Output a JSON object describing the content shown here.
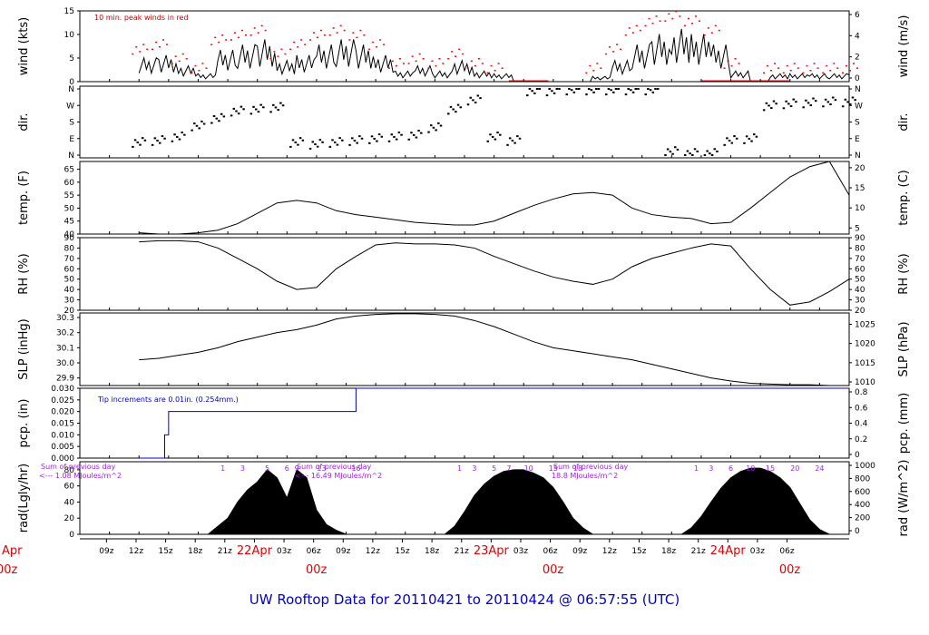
{
  "footer": {
    "title": "UW Rooftop Data for 20110421  to  20110424 @ 06:57:55  (UTC)"
  },
  "x_axis": {
    "hour_ticks": [
      "09z",
      "12z",
      "15z",
      "18z",
      "21z",
      "22Apr",
      "03z",
      "06z",
      "09z",
      "12z",
      "15z",
      "18z",
      "21z",
      "23Apr",
      "03z",
      "06z",
      "09z",
      "12z",
      "15z",
      "18z",
      "21z",
      "24Apr",
      "03z",
      "06z"
    ],
    "day_labels": [
      {
        "day": "21Apr",
        "time": "00z"
      },
      {
        "day": "22Apr",
        "time": "00z"
      },
      {
        "day": "23Apr",
        "time": "00z"
      },
      {
        "day": "24Apr",
        "time": "00z"
      }
    ]
  },
  "chart_data": [
    {
      "type": "line",
      "panel": "wind",
      "ylabel": "wind (kts)",
      "ylabel_right": "wind (m/s)",
      "ylim": [
        0,
        15
      ],
      "yticks": [
        "0",
        "5",
        "10",
        "15"
      ],
      "yticks_right": [
        "0",
        "2",
        "4",
        "6"
      ],
      "annotation": "10 min. peak winds in red",
      "series": [
        {
          "name": "wind",
          "color": "#000000",
          "x": [
            6,
            8,
            10,
            12,
            14,
            16,
            18,
            20,
            22,
            24,
            26,
            28,
            30,
            32,
            34,
            36,
            38,
            40,
            42,
            44,
            46,
            48,
            50,
            52,
            54,
            56,
            58,
            60,
            62,
            64,
            66,
            68,
            70,
            72,
            74,
            76,
            78
          ],
          "values": [
            4.5,
            5,
            3,
            1.5,
            6,
            7,
            8,
            4,
            5,
            7,
            8,
            7,
            5,
            2,
            3,
            2,
            4,
            2,
            1.5,
            0,
            0,
            0,
            0,
            1,
            4,
            7,
            9,
            10,
            9,
            7,
            2,
            0,
            1.5,
            1.5,
            1.5,
            1.5,
            1.5
          ]
        },
        {
          "name": "peak",
          "color": "#ff0000",
          "x": [
            6,
            8,
            10,
            12,
            14,
            16,
            18,
            20,
            22,
            24,
            26,
            28,
            30,
            32,
            34,
            36,
            38,
            40,
            42,
            44,
            46,
            48,
            50,
            52,
            54,
            56,
            58,
            60,
            62,
            64,
            66,
            68,
            70,
            72,
            74,
            76,
            78
          ],
          "values": [
            7,
            8,
            5,
            3,
            9,
            10,
            11,
            6,
            8,
            10,
            11,
            10,
            8,
            4,
            5,
            4,
            6,
            4,
            3,
            0,
            0,
            0,
            0,
            3,
            7,
            11,
            13,
            14,
            13,
            11,
            4,
            0,
            3,
            3,
            3,
            3,
            3
          ]
        }
      ]
    },
    {
      "type": "scatter",
      "panel": "dir",
      "ylabel": "dir.",
      "ylabel_right": "dir.",
      "yticks": [
        "N",
        "E",
        "S",
        "W",
        "N"
      ],
      "series": [
        {
          "name": "direction",
          "color": "#000000",
          "x": [
            6,
            8,
            10,
            12,
            14,
            16,
            18,
            20,
            22,
            24,
            26,
            28,
            30,
            32,
            34,
            36,
            38,
            40,
            42,
            44,
            46,
            48,
            50,
            52,
            54,
            56,
            58,
            60,
            62,
            64,
            66,
            68,
            70,
            72,
            74,
            76,
            78
          ],
          "values": [
            70,
            80,
            100,
            160,
            200,
            240,
            250,
            260,
            70,
            60,
            70,
            80,
            90,
            100,
            110,
            150,
            250,
            300,
            100,
            80,
            350,
            350,
            355,
            355,
            355,
            355,
            355,
            20,
            10,
            10,
            80,
            90,
            270,
            280,
            285,
            290,
            290
          ]
        }
      ]
    },
    {
      "type": "line",
      "panel": "temp",
      "ylabel": "temp. (F)",
      "ylabel_right": "temp. (C)",
      "ylim": [
        40,
        68
      ],
      "yticks": [
        "40",
        "45",
        "50",
        "55",
        "60",
        "65"
      ],
      "yticks_right": [
        "5",
        "10",
        "15",
        "20"
      ],
      "series": [
        {
          "name": "temperature",
          "color": "#000000",
          "x": [
            6,
            8,
            10,
            12,
            14,
            16,
            18,
            20,
            22,
            24,
            26,
            28,
            30,
            32,
            34,
            36,
            38,
            40,
            42,
            44,
            46,
            48,
            50,
            52,
            54,
            56,
            58,
            60,
            62,
            64,
            66,
            68,
            70,
            72,
            74,
            76,
            78
          ],
          "values": [
            40.5,
            40,
            40,
            40.5,
            41.5,
            44,
            48,
            52,
            53,
            52,
            49,
            47.5,
            46.5,
            45.5,
            44.5,
            44,
            43.5,
            43.5,
            45,
            48,
            51,
            53.5,
            55.5,
            56,
            55,
            50,
            47.5,
            46.5,
            46,
            44,
            44.5,
            50,
            56,
            62,
            66,
            68,
            55
          ]
        }
      ]
    },
    {
      "type": "line",
      "panel": "rh",
      "ylabel": "RH (%)",
      "ylabel_right": "RH (%)",
      "ylim": [
        20,
        90
      ],
      "yticks": [
        "20",
        "30",
        "40",
        "50",
        "60",
        "70",
        "80",
        "90"
      ],
      "series": [
        {
          "name": "relative humidity",
          "color": "#000000",
          "x": [
            6,
            8,
            10,
            12,
            14,
            16,
            18,
            20,
            22,
            24,
            26,
            28,
            30,
            32,
            34,
            36,
            38,
            40,
            42,
            44,
            46,
            48,
            50,
            52,
            54,
            56,
            58,
            60,
            62,
            64,
            66,
            68,
            70,
            72,
            74,
            76,
            78
          ],
          "values": [
            86,
            87,
            87,
            86,
            80,
            70,
            60,
            48,
            40,
            42,
            60,
            72,
            83,
            85,
            84,
            84,
            83,
            80,
            72,
            65,
            58,
            52,
            48,
            45,
            50,
            62,
            70,
            75,
            80,
            84,
            82,
            60,
            40,
            25,
            28,
            38,
            50
          ]
        }
      ]
    },
    {
      "type": "line",
      "panel": "slp",
      "ylabel": "SLP (inHg)",
      "ylabel_right": "SLP (hPa)",
      "ylim": [
        29.85,
        30.33
      ],
      "yticks": [
        "29.9",
        "30.0",
        "30.1",
        "30.2",
        "30.3"
      ],
      "yticks_right": [
        "1010",
        "1015",
        "1020",
        "1025"
      ],
      "series": [
        {
          "name": "pressure",
          "color": "#000000",
          "x": [
            6,
            8,
            10,
            12,
            14,
            16,
            18,
            20,
            22,
            24,
            26,
            28,
            30,
            32,
            34,
            36,
            38,
            40,
            42,
            44,
            46,
            48,
            50,
            52,
            54,
            56,
            58,
            60,
            62,
            64,
            66,
            68,
            70,
            72,
            74,
            76,
            78
          ],
          "values": [
            30.02,
            30.03,
            30.05,
            30.07,
            30.1,
            30.14,
            30.17,
            30.2,
            30.22,
            30.25,
            30.29,
            30.31,
            30.32,
            30.325,
            30.325,
            30.32,
            30.31,
            30.28,
            30.24,
            30.19,
            30.14,
            30.1,
            30.08,
            30.06,
            30.04,
            30.02,
            29.99,
            29.96,
            29.93,
            29.9,
            29.88,
            29.865,
            29.86,
            29.855,
            29.855,
            29.85,
            29.85
          ]
        }
      ]
    },
    {
      "type": "line",
      "panel": "pcp",
      "ylabel": "pcp. (in)",
      "ylabel_right": "pcp. (mm)",
      "ylim": [
        0,
        0.03
      ],
      "yticks": [
        "0.000",
        "0.005",
        "0.010",
        "0.015",
        "0.020",
        "0.025",
        "0.030"
      ],
      "yticks_right": [
        "0",
        "0.2",
        "0.4",
        "0.6",
        "0.8"
      ],
      "annotation": "Tip increments are 0.01in. (0.254mm.)",
      "series": [
        {
          "name": "precipitation",
          "color": "#0000cc",
          "x": [
            6,
            8.6,
            8.6,
            9,
            9,
            28,
            28,
            78
          ],
          "values": [
            0,
            0,
            0.01,
            0.01,
            0.02,
            0.02,
            0.03,
            0.03
          ]
        }
      ]
    },
    {
      "type": "area",
      "panel": "rad",
      "ylabel": "rad(Lgly/hr)",
      "ylabel_right": "rad (W/m^2)",
      "ylim": [
        0,
        90
      ],
      "yticks": [
        "0",
        "20",
        "40",
        "60",
        "80"
      ],
      "yticks_right": [
        "0",
        "200",
        "400",
        "600",
        "800",
        "1000"
      ],
      "annotations": [
        {
          "line1": "Sum of previous day",
          "line2": "<--- 1.08 MJoules/m^2"
        },
        {
          "line1": "Sum of previous day",
          "line2": "<--- 16.49 MJoules/m^2"
        },
        {
          "line1": "Sum of previous day",
          "line2": "18.8 MJoules/m^2"
        }
      ],
      "hour_labels": [
        {
          "labels": [
            "1",
            "3",
            "5",
            "6",
            "9",
            "13",
            "16"
          ],
          "x": [
            14.5,
            16.5,
            19,
            21,
            22,
            24.5,
            28
          ]
        },
        {
          "labels": [
            "1",
            "3",
            "5",
            "7",
            "10",
            "15",
            "18"
          ],
          "x": [
            38.5,
            40,
            42,
            43.5,
            45.5,
            48,
            50.5
          ]
        },
        {
          "labels": [
            "1",
            "3",
            "6",
            "10",
            "15",
            "20",
            "24"
          ],
          "x": [
            62.5,
            64,
            66,
            68,
            70,
            72.5,
            75
          ]
        }
      ],
      "series": [
        {
          "name": "radiation",
          "color": "#000000",
          "x": [
            13,
            14,
            15,
            16,
            17,
            18,
            19,
            20,
            21,
            22,
            23,
            24,
            25,
            26,
            27,
            37,
            38,
            39,
            40,
            41,
            42,
            43,
            44,
            45,
            46,
            47,
            48,
            49,
            50,
            51,
            52,
            61,
            62,
            63,
            64,
            65,
            66,
            67,
            68,
            69,
            70,
            71,
            72,
            73,
            74,
            75,
            76
          ],
          "values": [
            0,
            10,
            20,
            40,
            55,
            65,
            80,
            70,
            45,
            80,
            70,
            30,
            12,
            5,
            0,
            0,
            10,
            28,
            48,
            62,
            72,
            78,
            80,
            80,
            76,
            70,
            58,
            40,
            20,
            8,
            0,
            0,
            8,
            22,
            40,
            57,
            70,
            78,
            82,
            82,
            78,
            70,
            58,
            38,
            18,
            6,
            0
          ]
        }
      ]
    }
  ]
}
